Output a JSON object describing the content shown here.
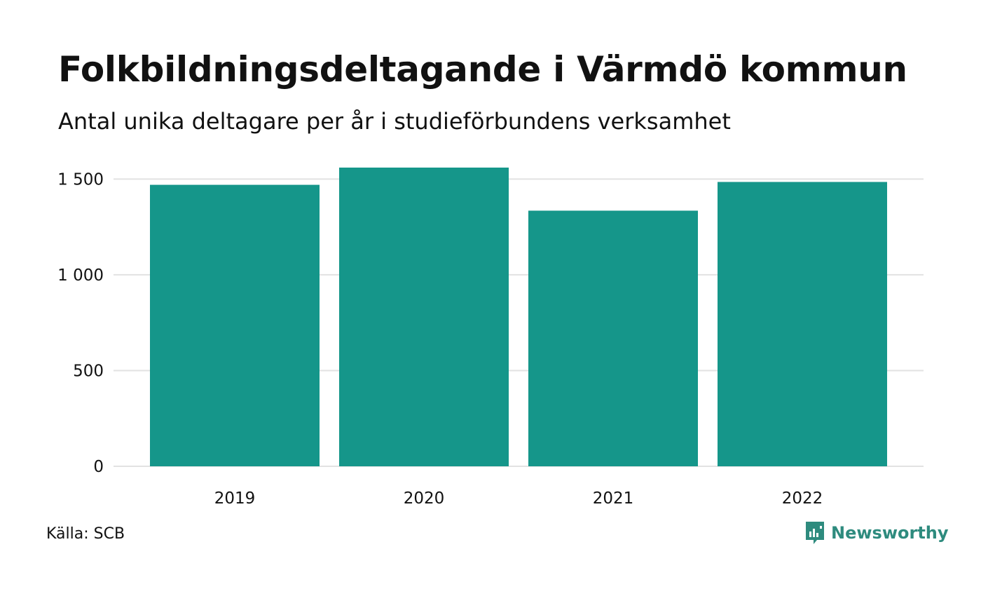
{
  "header": {
    "title": "Folkbildningsdeltagande i Värmdö kommun",
    "subtitle": "Antal unika deltagare per år i studieförbundens verksamhet"
  },
  "footer": {
    "source": "Källa: SCB",
    "brand": "Newsworthy",
    "brand_icon": "bar-chart-speech-icon"
  },
  "colors": {
    "bar": "#15968a",
    "grid": "#e2e2e2",
    "brand": "#2e8b7e"
  },
  "chart_data": {
    "type": "bar",
    "categories": [
      "2019",
      "2020",
      "2021",
      "2022"
    ],
    "values": [
      1470,
      1560,
      1335,
      1485
    ],
    "ylim": [
      0,
      1560
    ],
    "yticks": [
      0,
      500,
      1000,
      1500
    ],
    "ytick_labels": [
      "0",
      "500",
      "1 000",
      "1 500"
    ],
    "grid": true,
    "legend": "none"
  }
}
